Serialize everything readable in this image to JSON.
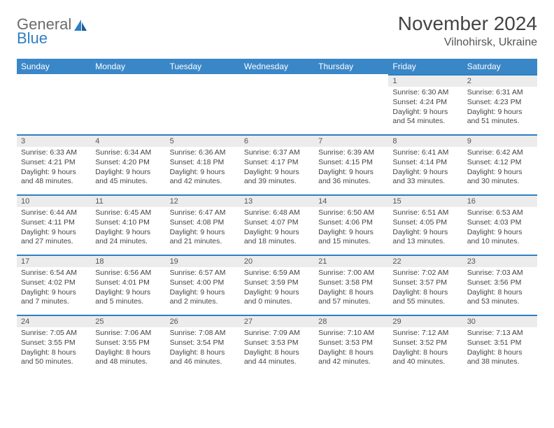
{
  "brand": {
    "word1": "General",
    "word2": "Blue"
  },
  "title": "November 2024",
  "location": "Vilnohirsk, Ukraine",
  "colors": {
    "header_bg": "#3a87c8",
    "header_text": "#ffffff",
    "daynum_bg": "#ececec",
    "daynum_border": "#2f7fc2",
    "text": "#444444",
    "logo_gray": "#6b6b6b",
    "logo_blue": "#2f7fc2"
  },
  "day_labels": [
    "Sunday",
    "Monday",
    "Tuesday",
    "Wednesday",
    "Thursday",
    "Friday",
    "Saturday"
  ],
  "weeks": [
    [
      null,
      null,
      null,
      null,
      null,
      {
        "n": "1",
        "sr": "Sunrise: 6:30 AM",
        "ss": "Sunset: 4:24 PM",
        "dl": "Daylight: 9 hours and 54 minutes."
      },
      {
        "n": "2",
        "sr": "Sunrise: 6:31 AM",
        "ss": "Sunset: 4:23 PM",
        "dl": "Daylight: 9 hours and 51 minutes."
      }
    ],
    [
      {
        "n": "3",
        "sr": "Sunrise: 6:33 AM",
        "ss": "Sunset: 4:21 PM",
        "dl": "Daylight: 9 hours and 48 minutes."
      },
      {
        "n": "4",
        "sr": "Sunrise: 6:34 AM",
        "ss": "Sunset: 4:20 PM",
        "dl": "Daylight: 9 hours and 45 minutes."
      },
      {
        "n": "5",
        "sr": "Sunrise: 6:36 AM",
        "ss": "Sunset: 4:18 PM",
        "dl": "Daylight: 9 hours and 42 minutes."
      },
      {
        "n": "6",
        "sr": "Sunrise: 6:37 AM",
        "ss": "Sunset: 4:17 PM",
        "dl": "Daylight: 9 hours and 39 minutes."
      },
      {
        "n": "7",
        "sr": "Sunrise: 6:39 AM",
        "ss": "Sunset: 4:15 PM",
        "dl": "Daylight: 9 hours and 36 minutes."
      },
      {
        "n": "8",
        "sr": "Sunrise: 6:41 AM",
        "ss": "Sunset: 4:14 PM",
        "dl": "Daylight: 9 hours and 33 minutes."
      },
      {
        "n": "9",
        "sr": "Sunrise: 6:42 AM",
        "ss": "Sunset: 4:12 PM",
        "dl": "Daylight: 9 hours and 30 minutes."
      }
    ],
    [
      {
        "n": "10",
        "sr": "Sunrise: 6:44 AM",
        "ss": "Sunset: 4:11 PM",
        "dl": "Daylight: 9 hours and 27 minutes."
      },
      {
        "n": "11",
        "sr": "Sunrise: 6:45 AM",
        "ss": "Sunset: 4:10 PM",
        "dl": "Daylight: 9 hours and 24 minutes."
      },
      {
        "n": "12",
        "sr": "Sunrise: 6:47 AM",
        "ss": "Sunset: 4:08 PM",
        "dl": "Daylight: 9 hours and 21 minutes."
      },
      {
        "n": "13",
        "sr": "Sunrise: 6:48 AM",
        "ss": "Sunset: 4:07 PM",
        "dl": "Daylight: 9 hours and 18 minutes."
      },
      {
        "n": "14",
        "sr": "Sunrise: 6:50 AM",
        "ss": "Sunset: 4:06 PM",
        "dl": "Daylight: 9 hours and 15 minutes."
      },
      {
        "n": "15",
        "sr": "Sunrise: 6:51 AM",
        "ss": "Sunset: 4:05 PM",
        "dl": "Daylight: 9 hours and 13 minutes."
      },
      {
        "n": "16",
        "sr": "Sunrise: 6:53 AM",
        "ss": "Sunset: 4:03 PM",
        "dl": "Daylight: 9 hours and 10 minutes."
      }
    ],
    [
      {
        "n": "17",
        "sr": "Sunrise: 6:54 AM",
        "ss": "Sunset: 4:02 PM",
        "dl": "Daylight: 9 hours and 7 minutes."
      },
      {
        "n": "18",
        "sr": "Sunrise: 6:56 AM",
        "ss": "Sunset: 4:01 PM",
        "dl": "Daylight: 9 hours and 5 minutes."
      },
      {
        "n": "19",
        "sr": "Sunrise: 6:57 AM",
        "ss": "Sunset: 4:00 PM",
        "dl": "Daylight: 9 hours and 2 minutes."
      },
      {
        "n": "20",
        "sr": "Sunrise: 6:59 AM",
        "ss": "Sunset: 3:59 PM",
        "dl": "Daylight: 9 hours and 0 minutes."
      },
      {
        "n": "21",
        "sr": "Sunrise: 7:00 AM",
        "ss": "Sunset: 3:58 PM",
        "dl": "Daylight: 8 hours and 57 minutes."
      },
      {
        "n": "22",
        "sr": "Sunrise: 7:02 AM",
        "ss": "Sunset: 3:57 PM",
        "dl": "Daylight: 8 hours and 55 minutes."
      },
      {
        "n": "23",
        "sr": "Sunrise: 7:03 AM",
        "ss": "Sunset: 3:56 PM",
        "dl": "Daylight: 8 hours and 53 minutes."
      }
    ],
    [
      {
        "n": "24",
        "sr": "Sunrise: 7:05 AM",
        "ss": "Sunset: 3:55 PM",
        "dl": "Daylight: 8 hours and 50 minutes."
      },
      {
        "n": "25",
        "sr": "Sunrise: 7:06 AM",
        "ss": "Sunset: 3:55 PM",
        "dl": "Daylight: 8 hours and 48 minutes."
      },
      {
        "n": "26",
        "sr": "Sunrise: 7:08 AM",
        "ss": "Sunset: 3:54 PM",
        "dl": "Daylight: 8 hours and 46 minutes."
      },
      {
        "n": "27",
        "sr": "Sunrise: 7:09 AM",
        "ss": "Sunset: 3:53 PM",
        "dl": "Daylight: 8 hours and 44 minutes."
      },
      {
        "n": "28",
        "sr": "Sunrise: 7:10 AM",
        "ss": "Sunset: 3:53 PM",
        "dl": "Daylight: 8 hours and 42 minutes."
      },
      {
        "n": "29",
        "sr": "Sunrise: 7:12 AM",
        "ss": "Sunset: 3:52 PM",
        "dl": "Daylight: 8 hours and 40 minutes."
      },
      {
        "n": "30",
        "sr": "Sunrise: 7:13 AM",
        "ss": "Sunset: 3:51 PM",
        "dl": "Daylight: 8 hours and 38 minutes."
      }
    ]
  ]
}
